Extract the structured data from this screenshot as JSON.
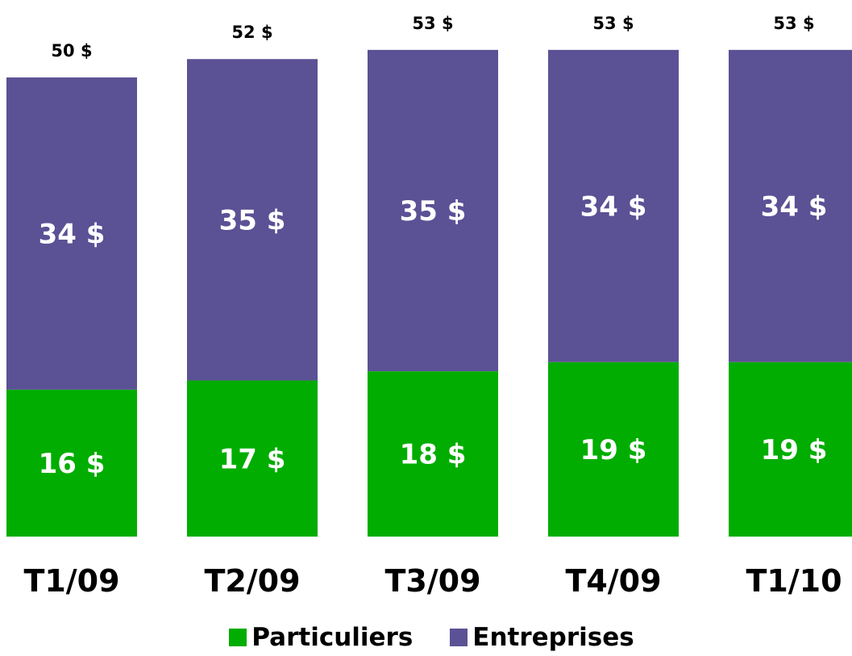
{
  "chart_data": {
    "type": "bar",
    "stacked": true,
    "categories": [
      "T1/09",
      "T2/09",
      "T3/09",
      "T4/09",
      "T1/10"
    ],
    "series": [
      {
        "name": "Particuliers",
        "values": [
          16,
          17,
          18,
          19,
          19
        ],
        "labels": [
          "16 $",
          "17 $",
          "18 $",
          "19 $",
          "19 $"
        ],
        "color": "#00ad00"
      },
      {
        "name": "Entreprises",
        "values": [
          34,
          35,
          35,
          34,
          34
        ],
        "labels": [
          "34 $",
          "35 $",
          "35 $",
          "34 $",
          "34 $"
        ],
        "color": "#5b5195"
      }
    ],
    "totals": [
      50,
      52,
      53,
      53,
      53
    ],
    "total_labels": [
      "50 $",
      "52 $",
      "53 $",
      "53 $",
      "53 $"
    ],
    "ylim": [
      0,
      53.6
    ],
    "grid": false,
    "legend_position": "bottom"
  },
  "legend": {
    "items": [
      {
        "label": "Particuliers",
        "color": "#00ad00"
      },
      {
        "label": "Entreprises",
        "color": "#5b5195"
      }
    ]
  }
}
